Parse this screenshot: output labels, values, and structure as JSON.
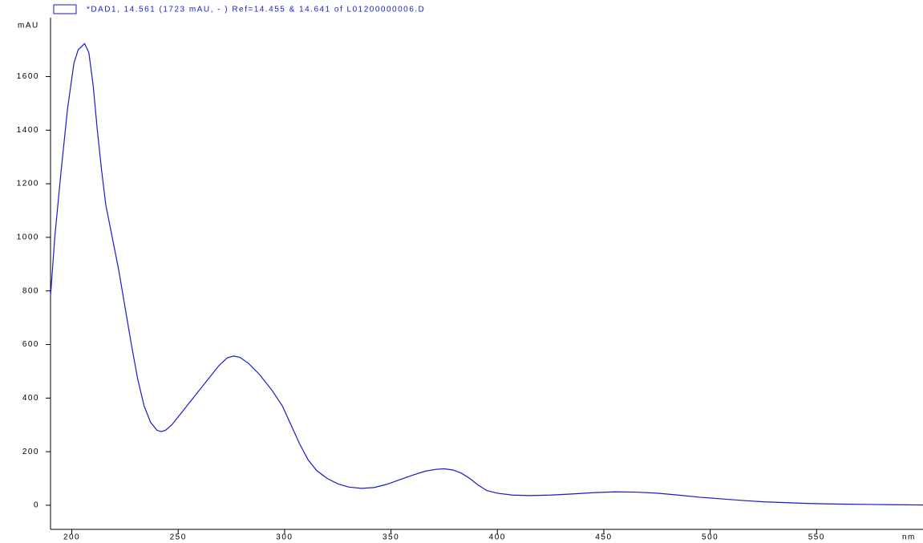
{
  "chart_data": {
    "type": "line",
    "legend": "*DAD1, 14.561 (1723 mAU, - ) Ref=14.455 & 14.641 of L01200000006.D",
    "y_label": "mAU",
    "x_label": "nm",
    "x": [
      190,
      192,
      195,
      198,
      201,
      203,
      206,
      208,
      210,
      212,
      214,
      216,
      219,
      222,
      225,
      228,
      231,
      234,
      237,
      240,
      242,
      244,
      247,
      252,
      258,
      264,
      269,
      273,
      276,
      279,
      283,
      288,
      294,
      299,
      303,
      307,
      311,
      315,
      320,
      325,
      330,
      336,
      342,
      348,
      354,
      360,
      366,
      371,
      375,
      379,
      383,
      387,
      391,
      395,
      400,
      407,
      415,
      425,
      435,
      445,
      455,
      465,
      475,
      485,
      495,
      505,
      515,
      525,
      535,
      545,
      555,
      565,
      575,
      585,
      600
    ],
    "series": [
      {
        "name": "*DAD1, 14.561 (1723 mAU, - ) Ref=14.455 & 14.641 of L01200000006.D",
        "color": "#1a1acc",
        "values": [
          780,
          1000,
          1250,
          1480,
          1650,
          1700,
          1723,
          1690,
          1570,
          1400,
          1250,
          1120,
          1000,
          880,
          740,
          600,
          470,
          370,
          310,
          280,
          275,
          280,
          300,
          350,
          410,
          470,
          520,
          550,
          557,
          552,
          530,
          490,
          430,
          370,
          300,
          230,
          170,
          130,
          100,
          80,
          68,
          63,
          66,
          78,
          95,
          112,
          127,
          134,
          136,
          132,
          120,
          100,
          75,
          55,
          45,
          38,
          36,
          38,
          42,
          47,
          50,
          49,
          45,
          38,
          30,
          24,
          18,
          13,
          10,
          7,
          5,
          4,
          3,
          2,
          1
        ]
      }
    ],
    "xlim": [
      190,
      600
    ],
    "ylim": [
      -90,
      1820
    ],
    "xticks": [
      200,
      250,
      300,
      350,
      400,
      450,
      500,
      550
    ],
    "yticks": [
      0,
      200,
      400,
      600,
      800,
      1000,
      1200,
      1400,
      1600
    ]
  }
}
